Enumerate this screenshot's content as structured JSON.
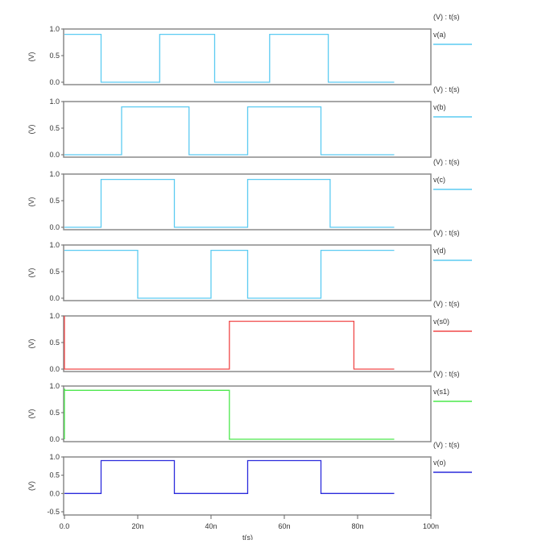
{
  "chart_data": {
    "type": "line",
    "title": "",
    "xlabel": "t(s)",
    "xlim": [
      0,
      100
    ],
    "x_unit": "ns",
    "x_ticks": [
      0,
      20,
      40,
      60,
      80,
      100
    ],
    "x_tick_labels": [
      "0.0",
      "20n",
      "40n",
      "60n",
      "80n",
      "100n"
    ],
    "grid": false,
    "legend_placement": "right",
    "panels": [
      {
        "header": "(V) : t(s)",
        "ylabel": "(V)",
        "legend": "v(a)",
        "color": "#5ccbf2",
        "ylim": [
          -0.05,
          1.0
        ],
        "yticks": [
          0.0,
          0.5,
          1.0
        ],
        "ytick_labels": [
          "0.0",
          "0.5",
          "1.0"
        ],
        "x": [
          0,
          10,
          10,
          26,
          26,
          41,
          41,
          56,
          56,
          72,
          72,
          90
        ],
        "y": [
          0.9,
          0.9,
          0,
          0,
          0.9,
          0.9,
          0,
          0,
          0.9,
          0.9,
          0,
          0
        ]
      },
      {
        "header": "(V) : t(s)",
        "ylabel": "(V)",
        "legend": "v(b)",
        "color": "#5ccbf2",
        "ylim": [
          -0.05,
          1.0
        ],
        "yticks": [
          0.0,
          0.5,
          1.0
        ],
        "ytick_labels": [
          "0.0",
          "0.5",
          "1.0"
        ],
        "x": [
          0,
          15.6,
          15.6,
          34,
          34,
          50,
          50,
          70,
          70,
          90
        ],
        "y": [
          0,
          0,
          0.9,
          0.9,
          0,
          0,
          0.9,
          0.9,
          0,
          0
        ]
      },
      {
        "header": "(V) : t(s)",
        "ylabel": "(V)",
        "legend": "v(c)",
        "color": "#5ccbf2",
        "ylim": [
          -0.05,
          1.0
        ],
        "yticks": [
          0.0,
          0.5,
          1.0
        ],
        "ytick_labels": [
          "0.0",
          "0.5",
          "1.0"
        ],
        "x": [
          0,
          10,
          10,
          30,
          30,
          50,
          50,
          72.5,
          72.5,
          90
        ],
        "y": [
          0,
          0,
          0.9,
          0.9,
          0,
          0,
          0.9,
          0.9,
          0,
          0
        ]
      },
      {
        "header": "(V) : t(s)",
        "ylabel": "(V)",
        "legend": "v(d)",
        "color": "#5ccbf2",
        "ylim": [
          -0.05,
          1.0
        ],
        "yticks": [
          0.0,
          0.5,
          1.0
        ],
        "ytick_labels": [
          "0.0",
          "0.5",
          "1.0"
        ],
        "x": [
          0,
          20,
          20,
          40,
          40,
          50,
          50,
          70,
          70,
          90
        ],
        "y": [
          0.9,
          0.9,
          0,
          0,
          0.9,
          0.9,
          0,
          0,
          0.9,
          0.9
        ]
      },
      {
        "header": "(V) : t(s)",
        "ylabel": "(V)",
        "legend": "v(s0)",
        "color": "#f04848",
        "ylim": [
          -0.05,
          1.0
        ],
        "yticks": [
          0.0,
          0.5,
          1.0
        ],
        "ytick_labels": [
          "0.0",
          "0.5",
          "1.0"
        ],
        "x": [
          0,
          0,
          0.1,
          45,
          45,
          79,
          79,
          90
        ],
        "y": [
          1.0,
          0,
          0,
          0,
          0.9,
          0.9,
          0,
          0
        ]
      },
      {
        "header": "(V) : t(s)",
        "ylabel": "(V)",
        "legend": "v(s1)",
        "color": "#4ce84c",
        "ylim": [
          -0.05,
          1.0
        ],
        "yticks": [
          0.0,
          0.5,
          1.0
        ],
        "ytick_labels": [
          "0.0",
          "0.5",
          "1.0"
        ],
        "x": [
          0,
          0,
          0.1,
          45,
          45,
          90
        ],
        "y": [
          0,
          0.95,
          0.92,
          0.92,
          0,
          0
        ]
      },
      {
        "header": "(V) : t(s)",
        "ylabel": "(V)",
        "legend": "v(o)",
        "color": "#2b2bdc",
        "ylim": [
          -0.5,
          1.0
        ],
        "yticks": [
          -0.5,
          0.0,
          0.5,
          1.0
        ],
        "ytick_labels": [
          "-0.5",
          "0.0",
          "0.5",
          "1.0"
        ],
        "x": [
          0,
          10,
          10,
          30,
          30,
          50,
          50,
          70,
          70,
          90
        ],
        "y": [
          0,
          0,
          0.9,
          0.9,
          0,
          0,
          0.9,
          0.9,
          0,
          0
        ]
      }
    ]
  }
}
